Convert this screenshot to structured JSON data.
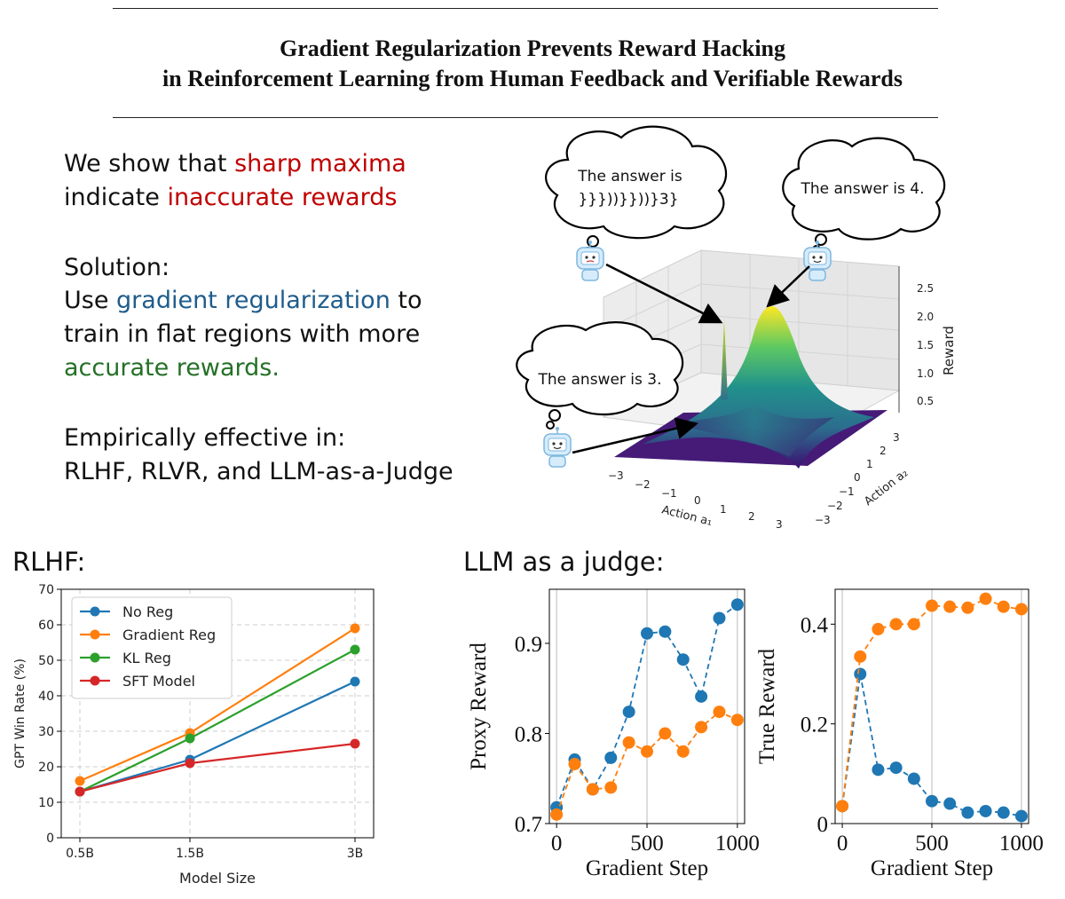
{
  "header": {
    "title_line1": "Gradient Regularization Prevents Reward Hacking",
    "title_line2": "in Reinforcement Learning from Human Feedback and Verifiable Rewards"
  },
  "claims": {
    "line1_prefix": "We show that ",
    "line1_highlight": "sharp maxima",
    "line2_prefix": "indicate ",
    "line2_highlight": "inaccurate rewards",
    "solution_label": "Solution:",
    "line3_prefix": "Use ",
    "line3_highlight": "gradient regularization",
    "line3_suffix": " to",
    "line4": "train in flat regions with more",
    "line5_highlight": "accurate rewards.",
    "empirical_label": "Empirically effective in:",
    "empirical_list": "RLHF, RLVR, and LLM-as-a-Judge"
  },
  "surface": {
    "speech_sharp_line1": "The answer is",
    "speech_sharp_line2": "}}}))}}))}3}",
    "speech_flat": "The answer is 4.",
    "speech_base": "The answer is 3.",
    "robot_icon": "robot-icon",
    "z_label": "Reward",
    "z_ticks": [
      "0.5",
      "1.0",
      "1.5",
      "2.0",
      "2.5"
    ],
    "x_label": "Action a₁",
    "x_ticks": [
      "−3",
      "−2",
      "−1",
      "0",
      "1",
      "2",
      "3"
    ],
    "y_label": "Action a₂",
    "y_ticks": [
      "−3",
      "−2",
      "−1",
      "0",
      "1",
      "2",
      "3"
    ]
  },
  "sections": {
    "rlhf": "RLHF:",
    "judge": "LLM as a judge:"
  },
  "chart_data": [
    {
      "type": "line",
      "name": "rlhf",
      "title": "",
      "xlabel": "Model Size",
      "ylabel": "GPT Win Rate (%)",
      "categories": [
        "0.5B",
        "1.5B",
        "3B"
      ],
      "x": [
        0.5,
        1.5,
        3
      ],
      "ylim": [
        0,
        70
      ],
      "yticks": [
        "0",
        "10",
        "20",
        "30",
        "40",
        "50",
        "60",
        "70"
      ],
      "grid": true,
      "legend": "top-left",
      "series": [
        {
          "name": "No Reg",
          "color": "#1f77b4",
          "values": [
            13,
            22,
            44
          ]
        },
        {
          "name": "Gradient Reg",
          "color": "#ff7f0e",
          "values": [
            16,
            29.5,
            59
          ]
        },
        {
          "name": "KL Reg",
          "color": "#2ca02c",
          "values": [
            13,
            28,
            53
          ]
        },
        {
          "name": "SFT Model",
          "color": "#d62728",
          "values": [
            13,
            21,
            26.5
          ]
        }
      ]
    },
    {
      "type": "line",
      "name": "proxy",
      "xlabel": "Gradient Step",
      "ylabel": "Proxy Reward",
      "x": [
        0,
        100,
        200,
        300,
        400,
        500,
        600,
        700,
        800,
        900,
        1000
      ],
      "xlim": [
        -40,
        1040
      ],
      "ylim": [
        0.7,
        0.96
      ],
      "xticks": [
        "0",
        "500",
        "1000"
      ],
      "yticks": [
        "0.7",
        "0.8",
        "0.9"
      ],
      "series": [
        {
          "name": "No Reg",
          "color": "#1f77b4",
          "values": [
            0.718,
            0.771,
            0.738,
            0.773,
            0.824,
            0.911,
            0.913,
            0.882,
            0.841,
            0.928,
            0.943
          ]
        },
        {
          "name": "Gradient Reg",
          "color": "#ff7f0e",
          "values": [
            0.71,
            0.766,
            0.738,
            0.74,
            0.79,
            0.78,
            0.8,
            0.78,
            0.807,
            0.824,
            0.815
          ]
        }
      ]
    },
    {
      "type": "line",
      "name": "true",
      "xlabel": "Gradient Step",
      "ylabel": "True Reward",
      "x": [
        0,
        100,
        200,
        300,
        400,
        500,
        600,
        700,
        800,
        900,
        1000
      ],
      "xlim": [
        -40,
        1040
      ],
      "ylim": [
        0,
        0.47
      ],
      "xticks": [
        "0",
        "500",
        "1000"
      ],
      "yticks": [
        "0",
        "0.2",
        "0.4"
      ],
      "series": [
        {
          "name": "No Reg",
          "color": "#1f77b4",
          "values": [
            0.035,
            0.3,
            0.108,
            0.112,
            0.09,
            0.045,
            0.04,
            0.022,
            0.025,
            0.022,
            0.015
          ]
        },
        {
          "name": "Gradient Reg",
          "color": "#ff7f0e",
          "values": [
            0.035,
            0.335,
            0.39,
            0.4,
            0.4,
            0.437,
            0.435,
            0.433,
            0.451,
            0.435,
            0.43
          ]
        }
      ]
    }
  ]
}
